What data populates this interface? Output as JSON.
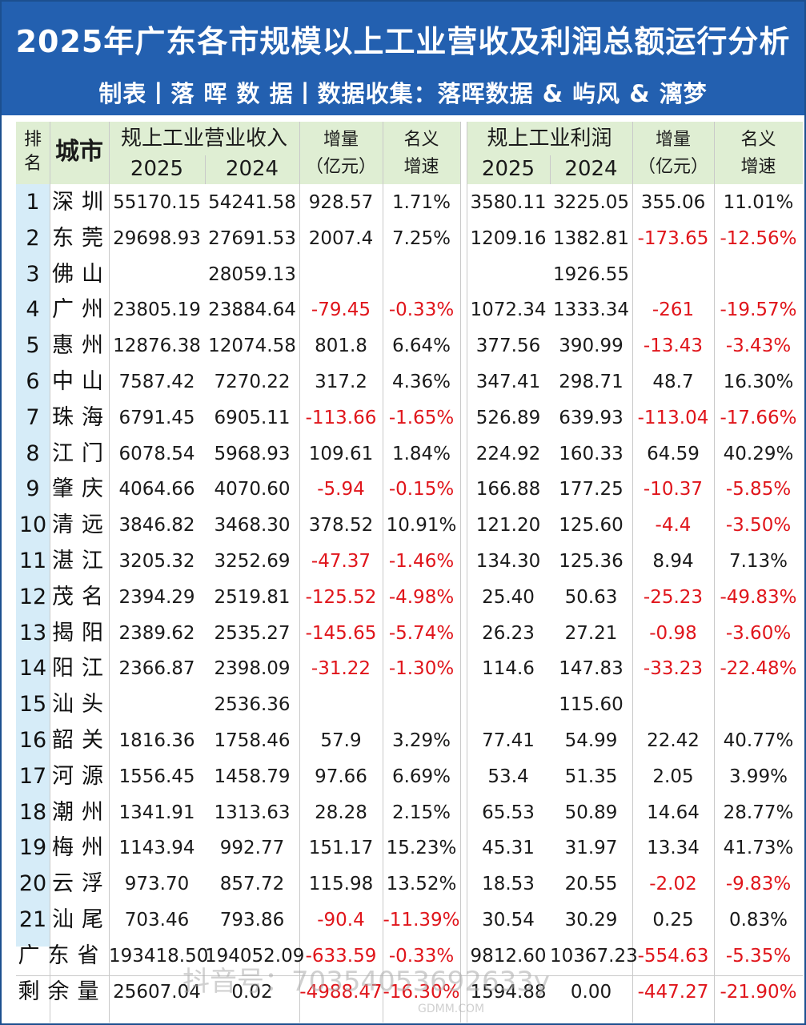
{
  "title": "2025年广东各市规模以上工业营收及利润总额运行分析",
  "subtitle": "制表丨落 晖 数 据丨数据收集：落晖数据 & 屿风 & 漓梦",
  "headers": {
    "rank": "排名",
    "city": "城市",
    "revenue": "规上工业营业收入",
    "year_2025": "2025",
    "year_2024": "2024",
    "increase": "增量（亿元）",
    "increase_l1": "增量",
    "increase_l2": "（亿元）",
    "growth_l1": "名义",
    "growth_l2": "增速",
    "profit": "规上工业利润"
  },
  "rows": [
    {
      "rank": "1",
      "city": "深圳",
      "rev25": "55170.15",
      "rev24": "54241.58",
      "rev_inc": "928.57",
      "rev_g": "1.71%",
      "pro25": "3580.11",
      "pro24": "3225.05",
      "pro_inc": "355.06",
      "pro_g": "11.01%"
    },
    {
      "rank": "2",
      "city": "东莞",
      "rev25": "29698.93",
      "rev24": "27691.53",
      "rev_inc": "2007.4",
      "rev_g": "7.25%",
      "pro25": "1209.16",
      "pro24": "1382.81",
      "pro_inc": "-173.65",
      "pro_g": "-12.56%"
    },
    {
      "rank": "3",
      "city": "佛山",
      "rev25": "",
      "rev24": "28059.13",
      "rev_inc": "",
      "rev_g": "",
      "pro25": "",
      "pro24": "1926.55",
      "pro_inc": "",
      "pro_g": ""
    },
    {
      "rank": "4",
      "city": "广州",
      "rev25": "23805.19",
      "rev24": "23884.64",
      "rev_inc": "-79.45",
      "rev_g": "-0.33%",
      "pro25": "1072.34",
      "pro24": "1333.34",
      "pro_inc": "-261",
      "pro_g": "-19.57%"
    },
    {
      "rank": "5",
      "city": "惠州",
      "rev25": "12876.38",
      "rev24": "12074.58",
      "rev_inc": "801.8",
      "rev_g": "6.64%",
      "pro25": "377.56",
      "pro24": "390.99",
      "pro_inc": "-13.43",
      "pro_g": "-3.43%"
    },
    {
      "rank": "6",
      "city": "中山",
      "rev25": "7587.42",
      "rev24": "7270.22",
      "rev_inc": "317.2",
      "rev_g": "4.36%",
      "pro25": "347.41",
      "pro24": "298.71",
      "pro_inc": "48.7",
      "pro_g": "16.30%"
    },
    {
      "rank": "7",
      "city": "珠海",
      "rev25": "6791.45",
      "rev24": "6905.11",
      "rev_inc": "-113.66",
      "rev_g": "-1.65%",
      "pro25": "526.89",
      "pro24": "639.93",
      "pro_inc": "-113.04",
      "pro_g": "-17.66%"
    },
    {
      "rank": "8",
      "city": "江门",
      "rev25": "6078.54",
      "rev24": "5968.93",
      "rev_inc": "109.61",
      "rev_g": "1.84%",
      "pro25": "224.92",
      "pro24": "160.33",
      "pro_inc": "64.59",
      "pro_g": "40.29%"
    },
    {
      "rank": "9",
      "city": "肇庆",
      "rev25": "4064.66",
      "rev24": "4070.60",
      "rev_inc": "-5.94",
      "rev_g": "-0.15%",
      "pro25": "166.88",
      "pro24": "177.25",
      "pro_inc": "-10.37",
      "pro_g": "-5.85%"
    },
    {
      "rank": "10",
      "city": "清远",
      "rev25": "3846.82",
      "rev24": "3468.30",
      "rev_inc": "378.52",
      "rev_g": "10.91%",
      "pro25": "121.20",
      "pro24": "125.60",
      "pro_inc": "-4.4",
      "pro_g": "-3.50%"
    },
    {
      "rank": "11",
      "city": "湛江",
      "rev25": "3205.32",
      "rev24": "3252.69",
      "rev_inc": "-47.37",
      "rev_g": "-1.46%",
      "pro25": "134.30",
      "pro24": "125.36",
      "pro_inc": "8.94",
      "pro_g": "7.13%"
    },
    {
      "rank": "12",
      "city": "茂名",
      "rev25": "2394.29",
      "rev24": "2519.81",
      "rev_inc": "-125.52",
      "rev_g": "-4.98%",
      "pro25": "25.40",
      "pro24": "50.63",
      "pro_inc": "-25.23",
      "pro_g": "-49.83%"
    },
    {
      "rank": "13",
      "city": "揭阳",
      "rev25": "2389.62",
      "rev24": "2535.27",
      "rev_inc": "-145.65",
      "rev_g": "-5.74%",
      "pro25": "26.23",
      "pro24": "27.21",
      "pro_inc": "-0.98",
      "pro_g": "-3.60%"
    },
    {
      "rank": "14",
      "city": "阳江",
      "rev25": "2366.87",
      "rev24": "2398.09",
      "rev_inc": "-31.22",
      "rev_g": "-1.30%",
      "pro25": "114.6",
      "pro24": "147.83",
      "pro_inc": "-33.23",
      "pro_g": "-22.48%"
    },
    {
      "rank": "15",
      "city": "汕头",
      "rev25": "",
      "rev24": "2536.36",
      "rev_inc": "",
      "rev_g": "",
      "pro25": "",
      "pro24": "115.60",
      "pro_inc": "",
      "pro_g": ""
    },
    {
      "rank": "16",
      "city": "韶关",
      "rev25": "1816.36",
      "rev24": "1758.46",
      "rev_inc": "57.9",
      "rev_g": "3.29%",
      "pro25": "77.41",
      "pro24": "54.99",
      "pro_inc": "22.42",
      "pro_g": "40.77%"
    },
    {
      "rank": "17",
      "city": "河源",
      "rev25": "1556.45",
      "rev24": "1458.79",
      "rev_inc": "97.66",
      "rev_g": "6.69%",
      "pro25": "53.4",
      "pro24": "51.35",
      "pro_inc": "2.05",
      "pro_g": "3.99%"
    },
    {
      "rank": "18",
      "city": "潮州",
      "rev25": "1341.91",
      "rev24": "1313.63",
      "rev_inc": "28.28",
      "rev_g": "2.15%",
      "pro25": "65.53",
      "pro24": "50.89",
      "pro_inc": "14.64",
      "pro_g": "28.77%"
    },
    {
      "rank": "19",
      "city": "梅州",
      "rev25": "1143.94",
      "rev24": "992.77",
      "rev_inc": "151.17",
      "rev_g": "15.23%",
      "pro25": "45.31",
      "pro24": "31.97",
      "pro_inc": "13.34",
      "pro_g": "41.73%"
    },
    {
      "rank": "20",
      "city": "云浮",
      "rev25": "973.70",
      "rev24": "857.72",
      "rev_inc": "115.98",
      "rev_g": "13.52%",
      "pro25": "18.53",
      "pro24": "20.55",
      "pro_inc": "-2.02",
      "pro_g": "-9.83%"
    },
    {
      "rank": "21",
      "city": "汕尾",
      "rev25": "703.46",
      "rev24": "793.86",
      "rev_inc": "-90.4",
      "rev_g": "-11.39%",
      "pro25": "30.54",
      "pro24": "30.29",
      "pro_inc": "0.25",
      "pro_g": "0.83%"
    }
  ],
  "summary": [
    {
      "label": "广东省",
      "rev25": "193418.50",
      "rev24": "194052.09",
      "rev_inc": "-633.59",
      "rev_g": "-0.33%",
      "pro25": "9812.60",
      "pro24": "10367.23",
      "pro_inc": "-554.63",
      "pro_g": "-5.35%"
    },
    {
      "label": "剩余量",
      "rev25": "25607.04",
      "rev24": "0.02",
      "rev_inc": "-4988.47",
      "rev_g": "-16.30%",
      "pro25": "1594.88",
      "pro24": "0.00",
      "pro_inc": "-447.27",
      "pro_g": "-21.90%"
    }
  ],
  "watermark": "抖音号：70354053692633y",
  "watermark2": "GDMM.COM",
  "colors": {
    "title_bg": "#2360b0",
    "header_bg": "#dfeed3",
    "rank_bg": "#d6ecf8",
    "negative": "#e0151b"
  }
}
